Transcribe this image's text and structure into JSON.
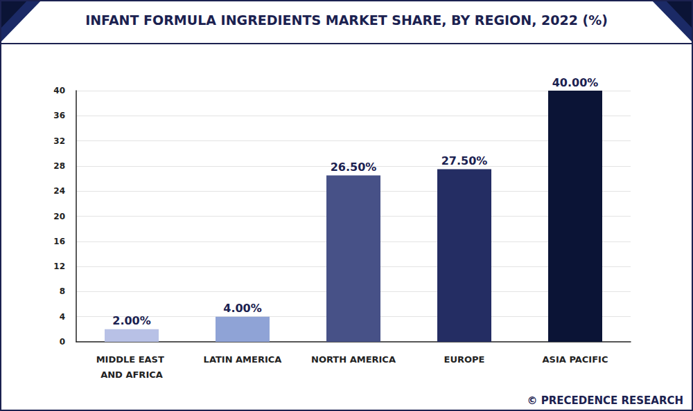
{
  "chart_data": {
    "type": "bar",
    "title": "INFANT FORMULA INGREDIENTS MARKET SHARE, BY REGION, 2022 (%)",
    "categories": [
      "MIDDLE EAST AND AFRICA",
      "LATIN AMERICA",
      "NORTH AMERICA",
      "EUROPE",
      "ASIA PACIFIC"
    ],
    "values": [
      2,
      4,
      26.5,
      27.5,
      40
    ],
    "value_labels": [
      "2.00%",
      "4.00%",
      "26.50%",
      "27.50%",
      "40.00%"
    ],
    "colors": [
      "#b8c1e6",
      "#8fa3d6",
      "#475187",
      "#242d63",
      "#0b1436"
    ],
    "ylim": [
      0,
      40
    ],
    "yticks": [
      0,
      4,
      8,
      12,
      16,
      20,
      24,
      28,
      32,
      36,
      40
    ],
    "grid": true,
    "data_labels": true,
    "annotation": "© PRECEDENCE RESEARCH"
  }
}
